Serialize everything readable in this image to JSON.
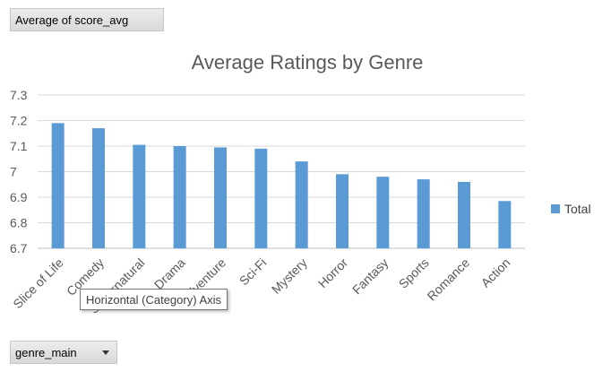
{
  "pivot": {
    "value_field": "Average of score_avg",
    "axis_field": "genre_main"
  },
  "tooltip": {
    "text": "Horizontal (Category) Axis"
  },
  "chart_data": {
    "type": "bar",
    "title": "Average Ratings by Genre",
    "categories": [
      "Slice of Life",
      "Comedy",
      "Supernatural",
      "Drama",
      "Adventure",
      "Sci-Fi",
      "Mystery",
      "Horror",
      "Fantasy",
      "Sports",
      "Romance",
      "Action"
    ],
    "series": [
      {
        "name": "Total",
        "values": [
          7.19,
          7.17,
          7.105,
          7.1,
          7.095,
          7.09,
          7.04,
          6.99,
          6.98,
          6.97,
          6.96,
          6.885
        ],
        "color": "#5b9bd5"
      }
    ],
    "ylim": [
      6.7,
      7.3
    ],
    "yticks": [
      "7.3",
      "7.2",
      "7.1",
      "7",
      "6.9",
      "6.8",
      "6.7"
    ],
    "grid": true,
    "legend_position": "right"
  }
}
